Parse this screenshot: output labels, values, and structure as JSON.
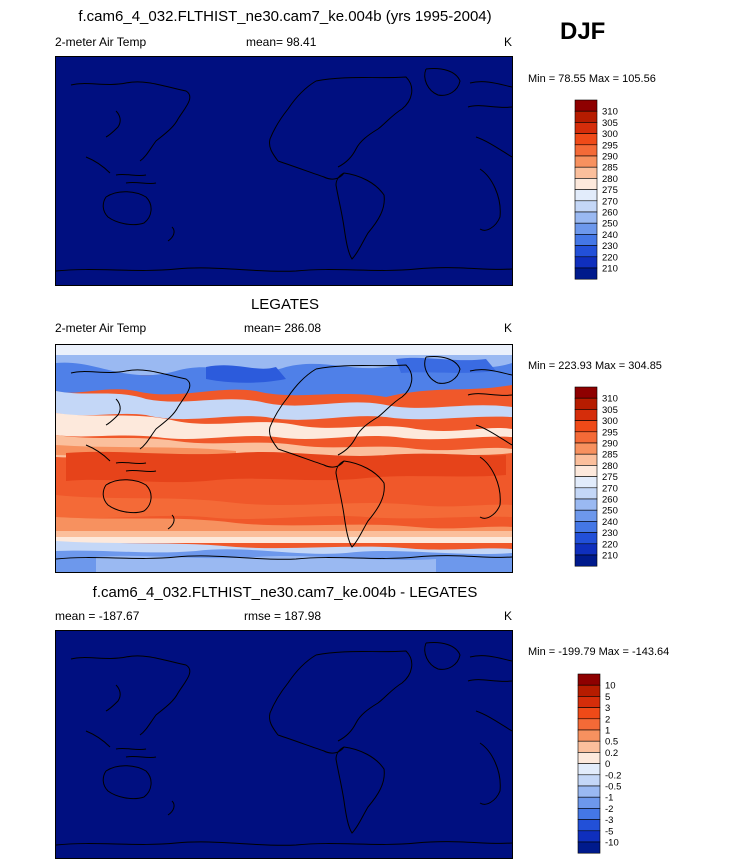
{
  "season": "DJF",
  "panels": [
    {
      "title": "f.cam6_4_032.FLTHIST_ne30.cam7_ke.004b (yrs 1995-2004)",
      "left_label": "2-meter Air Temp",
      "center_label": "mean=  98.41",
      "right_label": "K",
      "minmax": "Min =  78.55 Max = 105.56",
      "fill": "#000f80",
      "colorbar": {
        "labels": [
          "310",
          "305",
          "300",
          "295",
          "290",
          "285",
          "280",
          "275",
          "270",
          "260",
          "250",
          "240",
          "230",
          "220",
          "210"
        ],
        "colors": [
          "#8e0000",
          "#b61c00",
          "#d52d0a",
          "#ef4a18",
          "#f46a37",
          "#f7915f",
          "#fbbf9c",
          "#fde9dc",
          "#e2ecfb",
          "#c4d7f7",
          "#9ab9f2",
          "#6d98ec",
          "#4477e6",
          "#2250d8",
          "#0f2fbd",
          "#001a8c"
        ]
      }
    },
    {
      "title": "LEGATES",
      "left_label": "2-meter Air Temp",
      "center_label": "mean= 286.08",
      "right_label": "K",
      "minmax": "Min = 223.93 Max = 304.85",
      "colorbar": {
        "labels": [
          "310",
          "305",
          "300",
          "295",
          "290",
          "285",
          "280",
          "275",
          "270",
          "260",
          "250",
          "240",
          "230",
          "220",
          "210"
        ],
        "colors": [
          "#8e0000",
          "#b61c00",
          "#d52d0a",
          "#ef4a18",
          "#f46a37",
          "#f7915f",
          "#fbbf9c",
          "#fde9dc",
          "#e2ecfb",
          "#c4d7f7",
          "#9ab9f2",
          "#6d98ec",
          "#4477e6",
          "#2250d8",
          "#0f2fbd",
          "#001a8c"
        ]
      }
    },
    {
      "title": "f.cam6_4_032.FLTHIST_ne30.cam7_ke.004b - LEGATES",
      "left_label": "mean = -187.67",
      "center_label": "rmse = 187.98",
      "right_label": "K",
      "minmax": "Min = -199.79 Max = -143.64",
      "fill": "#000f80",
      "colorbar": {
        "labels": [
          "10",
          "5",
          "3",
          "2",
          "1",
          "0.5",
          "0.2",
          "0",
          "-0.2",
          "-0.5",
          "-1",
          "-2",
          "-3",
          "-5",
          "-10"
        ],
        "colors": [
          "#8e0000",
          "#b61c00",
          "#d52d0a",
          "#ef4a18",
          "#f46a37",
          "#f7915f",
          "#fbbf9c",
          "#fde9dc",
          "#e2ecfb",
          "#c4d7f7",
          "#9ab9f2",
          "#6d98ec",
          "#4477e6",
          "#2250d8",
          "#0f2fbd",
          "#001a8c"
        ]
      }
    }
  ],
  "chart_data": [
    {
      "type": "heatmap",
      "title": "f.cam6_4_032.FLTHIST_ne30.cam7_ke.004b (yrs 1995-2004)",
      "variable": "2-meter Air Temp",
      "units": "K",
      "mean": 98.41,
      "min": 78.55,
      "max": 105.56,
      "contour_levels": [
        210,
        220,
        230,
        240,
        250,
        260,
        270,
        275,
        280,
        285,
        290,
        295,
        300,
        305,
        310
      ]
    },
    {
      "type": "heatmap",
      "title": "LEGATES",
      "variable": "2-meter Air Temp",
      "units": "K",
      "mean": 286.08,
      "min": 223.93,
      "max": 304.85,
      "contour_levels": [
        210,
        220,
        230,
        240,
        250,
        260,
        270,
        275,
        280,
        285,
        290,
        295,
        300,
        305,
        310
      ]
    },
    {
      "type": "heatmap",
      "title": "f.cam6_4_032.FLTHIST_ne30.cam7_ke.004b - LEGATES",
      "units": "K",
      "mean": -187.67,
      "rmse": 187.98,
      "min": -199.79,
      "max": -143.64,
      "contour_levels": [
        -10,
        -5,
        -3,
        -2,
        -1,
        -0.5,
        -0.2,
        0,
        0.2,
        0.5,
        1,
        2,
        3,
        5,
        10
      ]
    }
  ]
}
